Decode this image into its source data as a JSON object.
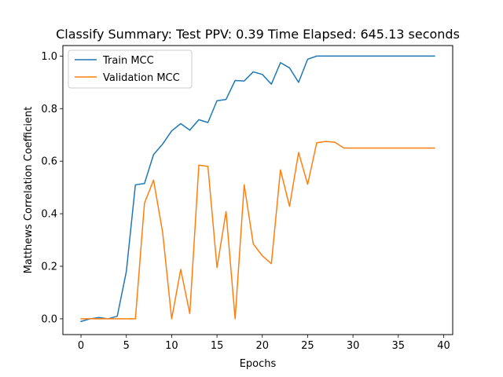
{
  "chart_data": {
    "type": "line",
    "title": "Classify Summary: Test PPV: 0.39 Time Elapsed: 645.13 seconds",
    "xlabel": "Epochs",
    "ylabel": "Matthews Correlation Coefficient",
    "xlim": [
      -2,
      41
    ],
    "ylim": [
      -0.06,
      1.04
    ],
    "xticks": [
      0,
      5,
      10,
      15,
      20,
      25,
      30,
      35,
      40
    ],
    "yticks": [
      0.0,
      0.2,
      0.4,
      0.6,
      0.8,
      1.0
    ],
    "grid": false,
    "legend_position": "top-left",
    "x": [
      0,
      1,
      2,
      3,
      4,
      5,
      6,
      7,
      8,
      9,
      10,
      11,
      12,
      13,
      14,
      15,
      16,
      17,
      18,
      19,
      20,
      21,
      22,
      23,
      24,
      25,
      26,
      27,
      28,
      29,
      30,
      31,
      32,
      33,
      34,
      35,
      36,
      37,
      38,
      39
    ],
    "series": [
      {
        "name": "Train MCC",
        "color": "#1f77b4",
        "values": [
          -0.01,
          0.0,
          0.005,
          0.0,
          0.01,
          0.18,
          0.51,
          0.515,
          0.625,
          0.665,
          0.715,
          0.743,
          0.718,
          0.758,
          0.747,
          0.83,
          0.835,
          0.907,
          0.905,
          0.94,
          0.93,
          0.893,
          0.975,
          0.955,
          0.9,
          0.988,
          1.0,
          1.0,
          1.0,
          1.0,
          1.0,
          1.0,
          1.0,
          1.0,
          1.0,
          1.0,
          1.0,
          1.0,
          1.0,
          1.0
        ]
      },
      {
        "name": "Validation MCC",
        "color": "#ff7f0e",
        "values": [
          0.0,
          0.0,
          0.0,
          0.0,
          0.0,
          0.0,
          0.0,
          0.44,
          0.528,
          0.33,
          0.0,
          0.188,
          0.02,
          0.585,
          0.58,
          0.195,
          0.408,
          0.0,
          0.51,
          0.285,
          0.24,
          0.21,
          0.567,
          0.428,
          0.633,
          0.512,
          0.67,
          0.675,
          0.672,
          0.65,
          0.65,
          0.65,
          0.65,
          0.65,
          0.65,
          0.65,
          0.65,
          0.65,
          0.65,
          0.65
        ]
      }
    ]
  }
}
